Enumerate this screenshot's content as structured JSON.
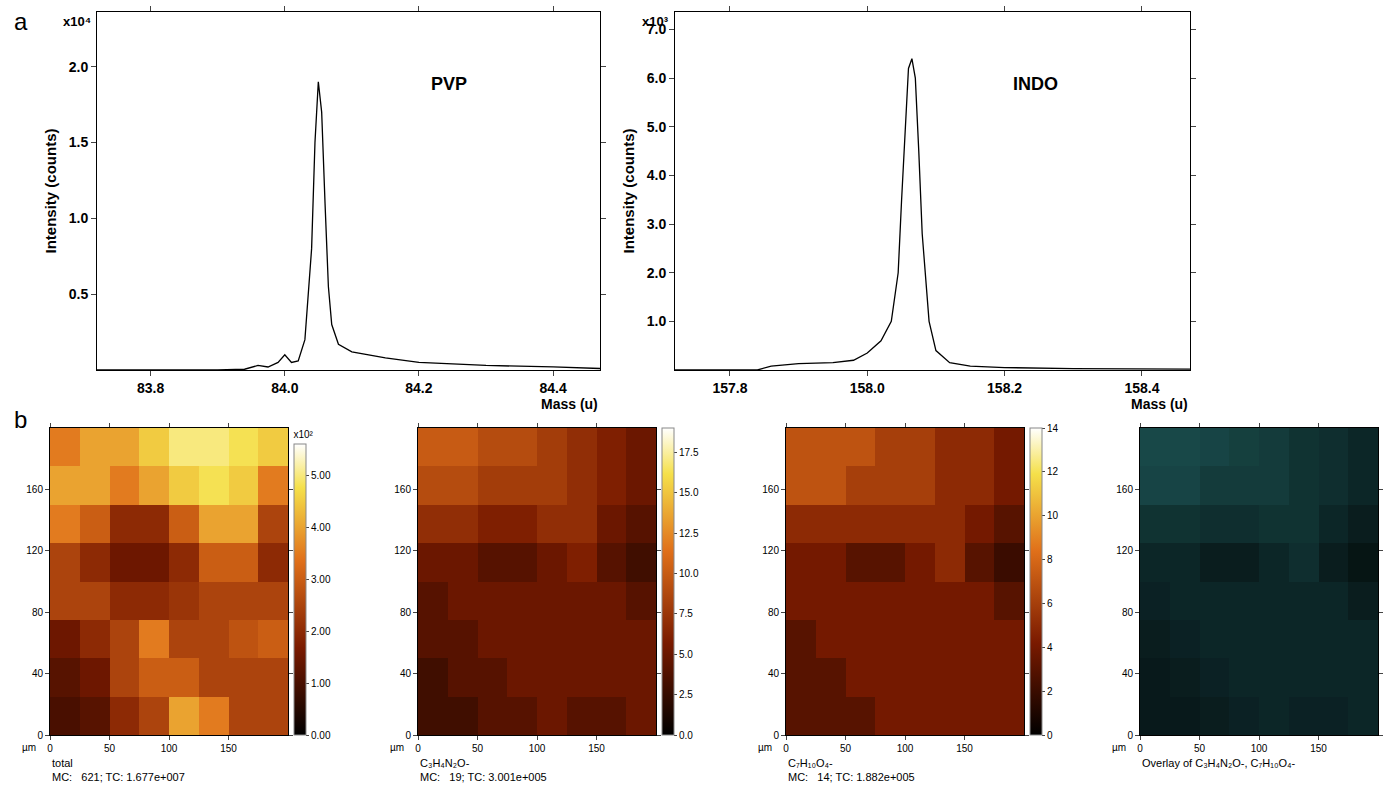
{
  "chart_data": [
    {
      "type": "line",
      "panel_label": "a",
      "title": "PVP",
      "annotations": [
        "x10⁴"
      ],
      "xlabel": "Mass (u)",
      "ylabel": "Intensity (counts)",
      "color": "#000000",
      "grid": false,
      "x": [
        83.72,
        83.9,
        83.94,
        83.96,
        83.975,
        83.99,
        84.0,
        84.01,
        84.02,
        84.03,
        84.04,
        84.045,
        84.05,
        84.055,
        84.06,
        84.065,
        84.07,
        84.08,
        84.1,
        84.15,
        84.2,
        84.3,
        84.4,
        84.47
      ],
      "values": [
        0,
        0,
        0.005,
        0.03,
        0.02,
        0.05,
        0.1,
        0.05,
        0.06,
        0.2,
        0.8,
        1.5,
        1.9,
        1.7,
        1.1,
        0.55,
        0.3,
        0.17,
        0.12,
        0.08,
        0.05,
        0.03,
        0.02,
        0.01
      ],
      "xlim": [
        83.72,
        84.47
      ],
      "xticks": [
        83.8,
        {
          "value": 84,
          "label": "84.0"
        },
        84.2,
        84.4
      ],
      "ylim": [
        0,
        2.36
      ],
      "yticks": [
        0.5,
        {
          "value": 1,
          "label": "1.0"
        },
        1.5,
        {
          "value": 2,
          "label": "2.0"
        }
      ]
    },
    {
      "type": "line",
      "title": "INDO",
      "annotations": [
        "x10³"
      ],
      "xlabel": "Mass (u)",
      "ylabel": "Intensity (counts)",
      "color": "#000000",
      "grid": false,
      "x": [
        157.72,
        157.84,
        157.86,
        157.9,
        157.95,
        157.98,
        158.0,
        158.02,
        158.035,
        158.045,
        158.05,
        158.055,
        158.06,
        158.065,
        158.07,
        158.075,
        158.08,
        158.09,
        158.1,
        158.12,
        158.15,
        158.2,
        158.3,
        158.47
      ],
      "values": [
        0,
        0,
        0.08,
        0.13,
        0.15,
        0.2,
        0.35,
        0.6,
        1.0,
        2.0,
        3.5,
        5.0,
        6.2,
        6.4,
        6.0,
        4.5,
        2.8,
        1.0,
        0.4,
        0.15,
        0.08,
        0.05,
        0.03,
        0.02
      ],
      "xlim": [
        157.72,
        158.47
      ],
      "xticks": [
        157.8,
        {
          "value": 158,
          "label": "158.0"
        },
        158.2,
        158.4
      ],
      "ylim": [
        0,
        7.36
      ],
      "yticks": [
        {
          "value": 1,
          "label": "1.0"
        },
        {
          "value": 2,
          "label": "2.0"
        },
        {
          "value": 3,
          "label": "3.0"
        },
        {
          "value": 4,
          "label": "4.0"
        },
        {
          "value": 5,
          "label": "5.0"
        },
        {
          "value": 6,
          "label": "6.0"
        },
        {
          "value": 7,
          "label": "7.0"
        }
      ]
    },
    {
      "type": "heatmap",
      "panel_label": "b",
      "title": "total",
      "caption": "MC:   621; TC: 1.677e+007",
      "xlabel": "µm",
      "x": [
        12.5,
        37.5,
        62.5,
        87.5,
        112.5,
        137.5,
        162.5,
        187.5
      ],
      "y": [
        12.5,
        37.5,
        62.5,
        87.5,
        112.5,
        137.5,
        162.5,
        187.5
      ],
      "z": [
        [
          1.0,
          1.2,
          2.0,
          2.5,
          4.0,
          3.5,
          2.5,
          2.5
        ],
        [
          1.2,
          1.5,
          2.5,
          3.0,
          3.0,
          2.5,
          2.5,
          2.5
        ],
        [
          1.5,
          2.0,
          2.5,
          3.5,
          2.5,
          2.5,
          2.8,
          3.0
        ],
        [
          2.5,
          2.5,
          2.0,
          2.0,
          2.2,
          2.5,
          2.5,
          2.5
        ],
        [
          2.5,
          2.0,
          1.5,
          1.5,
          2.0,
          3.0,
          3.0,
          2.0
        ],
        [
          3.5,
          3.0,
          2.0,
          2.0,
          3.0,
          4.0,
          4.0,
          2.5
        ],
        [
          4.0,
          4.0,
          3.5,
          4.0,
          4.5,
          4.8,
          4.5,
          3.5
        ],
        [
          3.5,
          4.0,
          4.0,
          4.5,
          5.0,
          5.0,
          4.8,
          4.5
        ]
      ],
      "xlim": [
        0,
        200
      ],
      "ylim": [
        0,
        200
      ],
      "xticks": [
        0,
        50,
        100,
        150
      ],
      "yticks": [
        0,
        40,
        80,
        120,
        160
      ],
      "colorbar": {
        "title": "x10²",
        "range": [
          0,
          5.6
        ],
        "ticks": [
          {
            "value": 0,
            "label": "0.00"
          },
          {
            "value": 1,
            "label": "1.00"
          },
          {
            "value": 2,
            "label": "2.00"
          },
          {
            "value": 3,
            "label": "3.00"
          },
          {
            "value": 4,
            "label": "4.00"
          },
          {
            "value": 5,
            "label": "5.00"
          }
        ]
      }
    },
    {
      "type": "heatmap",
      "title": "C₃H₄N₂O-",
      "caption": "MC:   19; TC: 3.001e+005",
      "xlabel": "µm",
      "x": [
        12.5,
        37.5,
        62.5,
        87.5,
        112.5,
        137.5,
        162.5,
        187.5
      ],
      "y": [
        12.5,
        37.5,
        62.5,
        87.5,
        112.5,
        137.5,
        162.5,
        187.5
      ],
      "z": [
        [
          3,
          3,
          4,
          4,
          5,
          4,
          4,
          5
        ],
        [
          3,
          4,
          4,
          5,
          5,
          5,
          5,
          5
        ],
        [
          4,
          4,
          5,
          5,
          5,
          5,
          5,
          5
        ],
        [
          4,
          5,
          5,
          5,
          5,
          5,
          5,
          4
        ],
        [
          5,
          5,
          4,
          4,
          5,
          6,
          4,
          3
        ],
        [
          7,
          7,
          6,
          6,
          7,
          7,
          5,
          4
        ],
        [
          9,
          9,
          8,
          8,
          8,
          7,
          6,
          5
        ],
        [
          10,
          10,
          9,
          9,
          8,
          7,
          6,
          5
        ]
      ],
      "xlim": [
        0,
        200
      ],
      "ylim": [
        0,
        200
      ],
      "xticks": [
        0,
        50,
        100,
        150
      ],
      "yticks": [
        0,
        40,
        80,
        120,
        160
      ],
      "colorbar": {
        "range": [
          0,
          19
        ],
        "ticks": [
          {
            "value": 0,
            "label": "0.0"
          },
          2.5,
          {
            "value": 5,
            "label": "5.0"
          },
          7.5,
          {
            "value": 10,
            "label": "10.0"
          },
          12.5,
          {
            "value": 15,
            "label": "15.0"
          },
          17.5
        ]
      }
    },
    {
      "type": "heatmap",
      "title": "C₇H₁₀O₄-",
      "caption": "MC:   14; TC: 1.882e+005",
      "xlabel": "µm",
      "x": [
        12.5,
        37.5,
        62.5,
        87.5,
        112.5,
        137.5,
        162.5,
        187.5
      ],
      "y": [
        12.5,
        37.5,
        62.5,
        87.5,
        112.5,
        137.5,
        162.5,
        187.5
      ],
      "z": [
        [
          3,
          3,
          3,
          4,
          4,
          4,
          4,
          4
        ],
        [
          3,
          3,
          4,
          4,
          4,
          4,
          4,
          4
        ],
        [
          3,
          4,
          4,
          4,
          4,
          4,
          4,
          4
        ],
        [
          4,
          4,
          4,
          4,
          4,
          4,
          4,
          3
        ],
        [
          4,
          4,
          3,
          3,
          4,
          5,
          3,
          2
        ],
        [
          5,
          5,
          5,
          5,
          5,
          5,
          4,
          3
        ],
        [
          7,
          7,
          6,
          6,
          6,
          5,
          5,
          4
        ],
        [
          7,
          7,
          7,
          6,
          6,
          5,
          5,
          4
        ]
      ],
      "xlim": [
        0,
        200
      ],
      "ylim": [
        0,
        200
      ],
      "xticks": [
        0,
        50,
        100,
        150
      ],
      "yticks": [
        0,
        40,
        80,
        120,
        160
      ],
      "colorbar": {
        "range": [
          0,
          14
        ],
        "ticks": [
          0,
          2,
          4,
          6,
          8,
          10,
          12,
          14
        ]
      }
    },
    {
      "type": "overlay",
      "title": "Overlay of C₃H₄N₂O-, C₇H₁₀O₄-",
      "xlabel": "µm",
      "series": [
        {
          "name": "C₃H₄N₂O-",
          "color": "#2fa86a"
        },
        {
          "name": "C₇H₁₀O₄-",
          "color": "#2f6fb0"
        }
      ],
      "xlim": [
        0,
        200
      ],
      "ylim": [
        0,
        200
      ],
      "xticks": [
        0,
        50,
        100,
        150
      ],
      "yticks": [
        0,
        40,
        80,
        120,
        160
      ]
    }
  ]
}
